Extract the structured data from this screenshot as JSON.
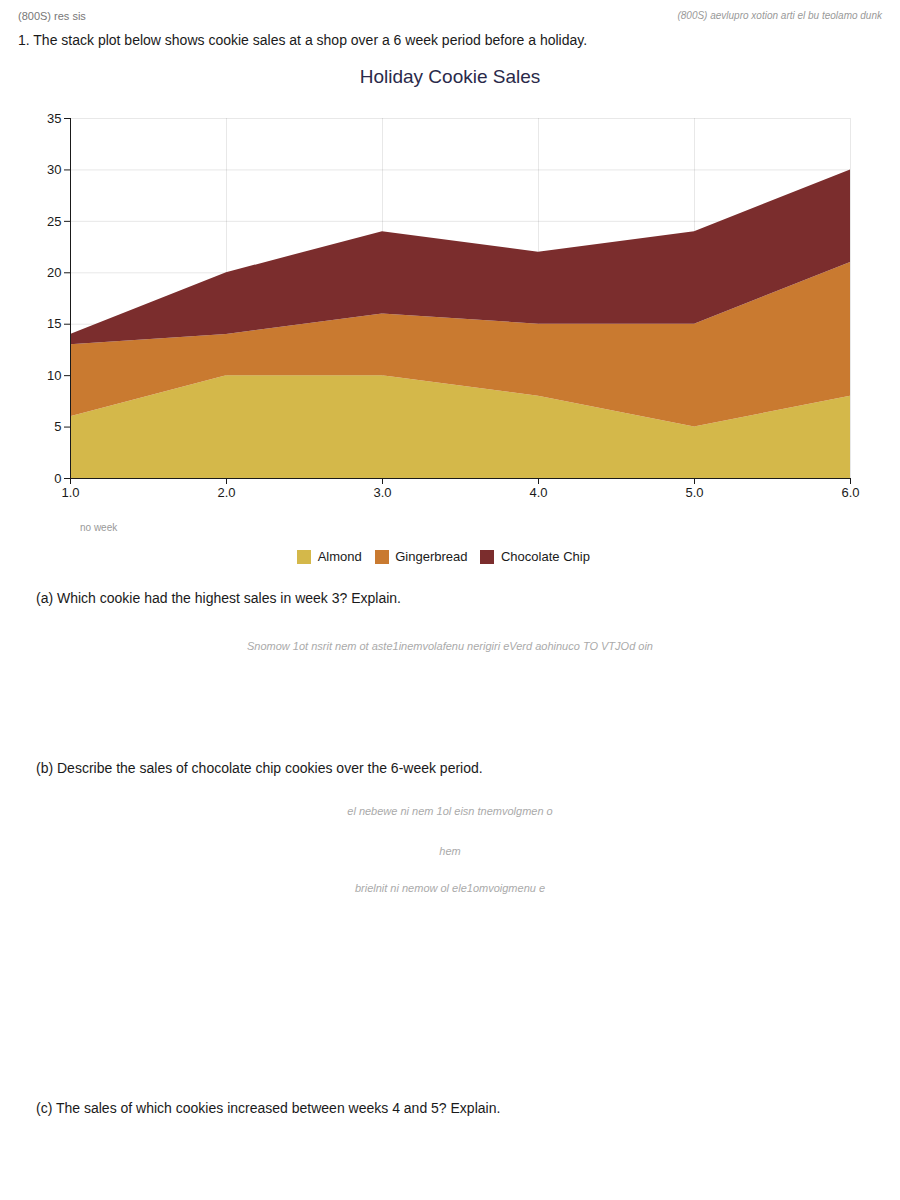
{
  "chart_data": {
    "type": "area",
    "stacked": true,
    "title": "Holiday Cookie Sales",
    "x": [
      1,
      2,
      3,
      4,
      5,
      6
    ],
    "series": [
      {
        "name": "Almond",
        "color": "#D4B84A",
        "values": [
          6,
          10,
          10,
          8,
          5,
          8
        ]
      },
      {
        "name": "Gingerbread",
        "color": "#C97A30",
        "values": [
          7,
          4,
          6,
          7,
          10,
          13
        ]
      },
      {
        "name": "Chocolate Chip",
        "color": "#7B2D2D",
        "values": [
          1,
          6,
          8,
          7,
          9,
          9
        ]
      }
    ],
    "xlim": [
      1,
      6
    ],
    "xticks": [
      1,
      2,
      3,
      4,
      5,
      6
    ],
    "ylim": [
      0,
      35
    ],
    "yticks": [
      0,
      5,
      10,
      15,
      20,
      25,
      30,
      35
    ],
    "grid": true,
    "legend": "bottom",
    "annotations": [
      "(800S) res sis",
      "(800S) aevlupro xotion arti el bu teolamo dunk",
      "1.  The stack plot below shows cookie sales at a shop over a 6 week period before a holiday.",
      "no week",
      "(a)  Which cookie had the highest sales in week 3? Explain.",
      "Snomow 1ot nsrit nem ot aste1inemvolafenu nerigiri eVerd aohinuco TO VTJOd oin",
      "(b)  Describe the sales of chocolate chip cookies over the 6-week period.",
      "el nebewe ni nem 1ol eisn tnemvolgmen o",
      "hem",
      "brielnit ni nemow ol ele1omvoigmenu e",
      "(c)  The sales of which cookies increased between weeks 4 and 5? Explain."
    ]
  }
}
